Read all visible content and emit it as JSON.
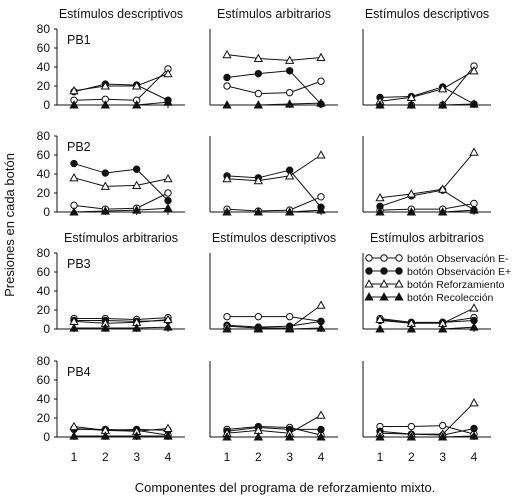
{
  "figure": {
    "ylabel": "Presiones en cada botón",
    "xlabel": "Componentes del programa de reforzamiento mixto."
  },
  "legend": {
    "items": [
      {
        "label": "botón Observación E-",
        "marker": "open-circle"
      },
      {
        "label": "botón Observación E+",
        "marker": "filled-circle"
      },
      {
        "label": "botón Reforzamiento",
        "marker": "open-triangle"
      },
      {
        "label": "botón Recolección",
        "marker": "filled-triangle"
      }
    ]
  },
  "chart_data": {
    "type": "line",
    "x": [
      1,
      2,
      3,
      4
    ],
    "ylim": [
      0,
      80
    ],
    "yticks": [
      0,
      20,
      40,
      60,
      80
    ],
    "grid": false,
    "legend_position": "row 3, right panel",
    "series_names": [
      "botón Observación E-",
      "botón Observación E+",
      "botón Reforzamiento",
      "botón Recolección"
    ],
    "rows": [
      {
        "subject": "PB1",
        "panels": [
          {
            "title": "Estímulos descriptivos",
            "values": [
              [
                5,
                6,
                5,
                38
              ],
              [
                14,
                22,
                21,
                5
              ],
              [
                15,
                20,
                20,
                33
              ],
              [
                0,
                0,
                0,
                3
              ]
            ]
          },
          {
            "title": "Estímulos arbitrarios",
            "values": [
              [
                20,
                12,
                13,
                25
              ],
              [
                29,
                33,
                36,
                1
              ],
              [
                53,
                49,
                47,
                50
              ],
              [
                0,
                0,
                1,
                2
              ]
            ]
          },
          {
            "title": "Estímulos descriptivos",
            "values": [
              [
                0,
                0,
                0,
                41
              ],
              [
                8,
                9,
                19,
                1
              ],
              [
                4,
                8,
                17,
                36
              ],
              [
                0,
                0,
                0,
                1
              ]
            ]
          }
        ]
      },
      {
        "subject": "PB2",
        "panels": [
          {
            "title": "",
            "values": [
              [
                7,
                3,
                4,
                20
              ],
              [
                51,
                41,
                45,
                12
              ],
              [
                36,
                27,
                28,
                35
              ],
              [
                0,
                1,
                2,
                4
              ]
            ]
          },
          {
            "title": "",
            "values": [
              [
                3,
                1,
                2,
                16
              ],
              [
                38,
                36,
                44,
                5
              ],
              [
                35,
                33,
                38,
                60
              ],
              [
                0,
                0,
                0,
                2
              ]
            ]
          },
          {
            "title": "",
            "values": [
              [
                2,
                3,
                3,
                9
              ],
              [
                6,
                17,
                23,
                2
              ],
              [
                15,
                19,
                24,
                63
              ],
              [
                0,
                0,
                0,
                2
              ]
            ]
          }
        ]
      },
      {
        "subject": "PB3",
        "panels": [
          {
            "title": "Estímulos arbitrarios",
            "values": [
              [
                11,
                11,
                10,
                12
              ],
              [
                9,
                9,
                8,
                9
              ],
              [
                8,
                6,
                7,
                10
              ],
              [
                1,
                1,
                1,
                2
              ]
            ]
          },
          {
            "title": "Estímulos descriptivos",
            "values": [
              [
                13,
                13,
                13,
                8
              ],
              [
                4,
                2,
                3,
                8
              ],
              [
                3,
                1,
                1,
                25
              ],
              [
                0,
                0,
                0,
                1
              ]
            ]
          },
          {
            "title": "Estímulos arbitrarios",
            "values": [
              [
                11,
                7,
                7,
                12
              ],
              [
                9,
                6,
                7,
                9
              ],
              [
                10,
                6,
                6,
                22
              ],
              [
                0,
                0,
                0,
                2
              ]
            ]
          }
        ]
      },
      {
        "subject": "PB4",
        "panels": [
          {
            "title": "",
            "values": [
              [
                8,
                8,
                7,
                2
              ],
              [
                9,
                7,
                8,
                7
              ],
              [
                11,
                7,
                6,
                9
              ],
              [
                1,
                1,
                1,
                1
              ]
            ]
          },
          {
            "title": "",
            "values": [
              [
                8,
                11,
                10,
                2
              ],
              [
                6,
                10,
                8,
                8
              ],
              [
                4,
                7,
                4,
                23
              ],
              [
                0,
                0,
                0,
                0
              ]
            ]
          },
          {
            "title": "",
            "values": [
              [
                11,
                11,
                12,
                3
              ],
              [
                6,
                3,
                2,
                9
              ],
              [
                4,
                3,
                3,
                36
              ],
              [
                0,
                0,
                0,
                1
              ]
            ]
          }
        ]
      }
    ]
  }
}
